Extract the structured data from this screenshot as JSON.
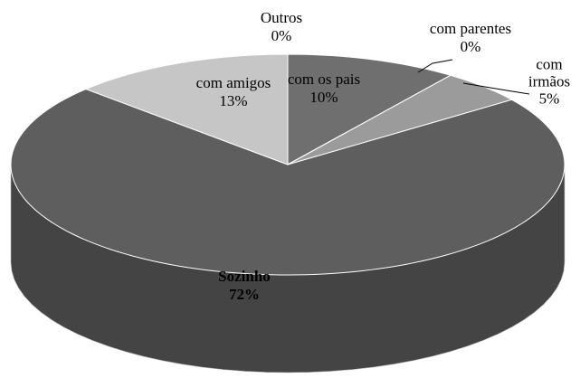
{
  "chart_data": {
    "type": "pie3d",
    "categories": [
      "com os pais",
      "com parentes",
      "com irmãos",
      "Sozinho",
      "com amigos",
      "Outros"
    ],
    "values": [
      10,
      0,
      5,
      72,
      13,
      0
    ],
    "value_labels": [
      "10%",
      "0%",
      "5%",
      "72%",
      "13%",
      "0%"
    ],
    "colors": [
      "#6f6f6f",
      "#8a8a8a",
      "#9b9b9b",
      "#5e5e5e",
      "#c6c6c6",
      "#a0a0a0"
    ]
  }
}
